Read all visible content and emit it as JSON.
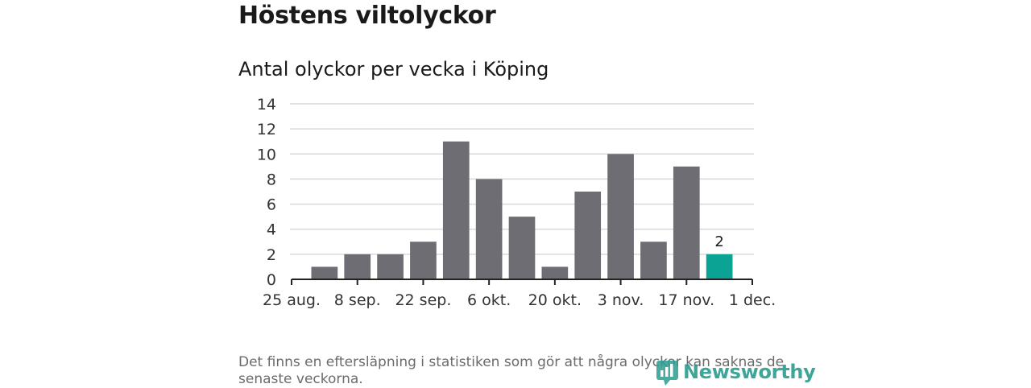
{
  "title": "Höstens viltolyckor",
  "chart_data": {
    "type": "bar",
    "title": "Antal olyckor per vecka i Köping",
    "xlabel": "",
    "ylabel": "",
    "ylim": [
      0,
      14
    ],
    "yticks": [
      0,
      2,
      4,
      6,
      8,
      10,
      12,
      14
    ],
    "xtick_labels": [
      "25 aug.",
      "8 sep.",
      "22 sep.",
      "6 okt.",
      "20 okt.",
      "3 nov.",
      "17 nov.",
      "1 dec."
    ],
    "values": [
      1,
      2,
      2,
      3,
      11,
      8,
      5,
      1,
      7,
      10,
      3,
      9,
      2
    ],
    "highlight_index": 12,
    "highlight_label": "2",
    "grid": true,
    "bar_color": "#6e6d73",
    "highlight_color": "#0aa394"
  },
  "footnote": "Det finns en eftersläpning i statistiken som gör att några olyckor kan saknas de senaste veckorna.",
  "logo": {
    "text": "Newsworthy",
    "icon": "newsworthy-logo-icon",
    "color": "#2a9c8f"
  }
}
